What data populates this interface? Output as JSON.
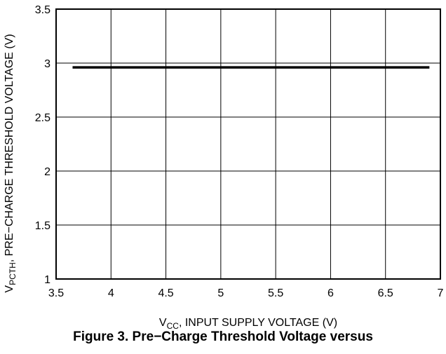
{
  "chart_data": {
    "type": "line",
    "xlabel": {
      "main": "V",
      "sub": "CC",
      "rest": ", INPUT SUPPLY VOLTAGE (V)"
    },
    "ylabel": {
      "main": "V",
      "sub": "PCTH",
      "rest": ", PRE−CHARGE THRESHOLD VOLTAGE (V)"
    },
    "xlim": [
      3.5,
      7
    ],
    "ylim": [
      1,
      3.5
    ],
    "x_ticks": [
      3.5,
      4,
      4.5,
      5,
      5.5,
      6,
      6.5,
      7
    ],
    "x_tick_labels": [
      "3.5",
      "4",
      "4.5",
      "5",
      "5.5",
      "6",
      "6.5",
      "7"
    ],
    "y_ticks": [
      1,
      1.5,
      2,
      2.5,
      3,
      3.5
    ],
    "y_tick_labels": [
      "1",
      "1.5",
      "2",
      "2.5",
      "3",
      "3.5"
    ],
    "grid": true,
    "series": [
      {
        "x": [
          3.65,
          6.9
        ],
        "y": [
          2.96,
          2.96
        ],
        "color": "#000000"
      }
    ]
  },
  "caption": "Figure 3. Pre−Charge Threshold Voltage versus"
}
